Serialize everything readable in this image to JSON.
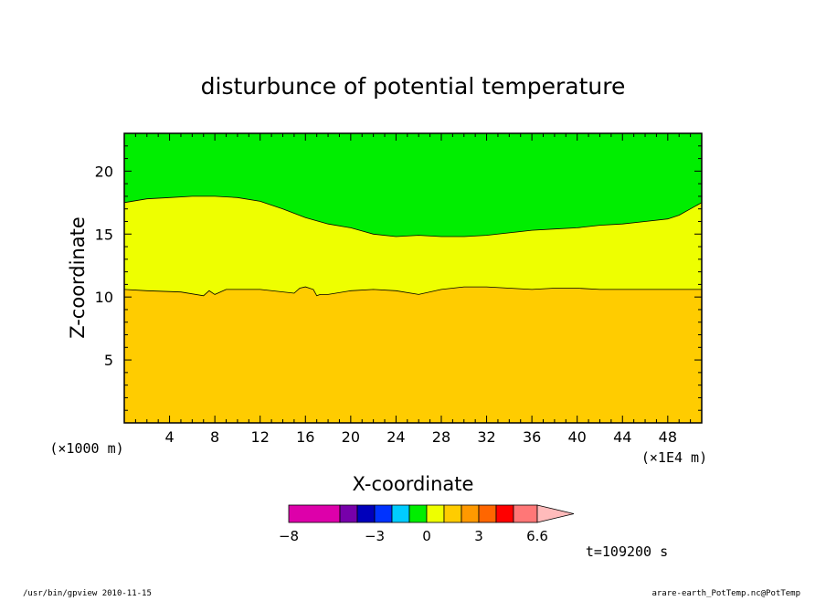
{
  "chart_data": {
    "type": "heatmap",
    "title": "disturbunce of potential temperature",
    "xlabel": "X-coordinate",
    "ylabel": "Z-coordinate",
    "x_unit_left": "(×1000 m)",
    "x_unit_right": "(×1E4 m)",
    "xlim": [
      0,
      51
    ],
    "ylim": [
      0,
      23
    ],
    "x_ticks": [
      "4",
      "8",
      "12",
      "16",
      "20",
      "24",
      "28",
      "32",
      "36",
      "40",
      "44",
      "48"
    ],
    "y_ticks": [
      "5",
      "10",
      "15",
      "20"
    ],
    "regions": [
      {
        "color": "#ffcc00",
        "description": "lower layer"
      },
      {
        "color": "#eeff00",
        "description": "middle layer"
      },
      {
        "color": "#00ee00",
        "description": "upper layer"
      }
    ],
    "contour_lower": {
      "x": [
        0,
        2,
        5,
        7,
        7.5,
        8,
        9,
        12,
        15,
        15.5,
        16,
        16.7,
        17,
        17.3,
        18,
        20,
        22,
        24,
        26,
        28,
        30,
        32,
        34,
        36,
        38,
        40,
        42,
        44,
        46,
        48,
        50,
        51
      ],
      "z": [
        10.6,
        10.5,
        10.4,
        10.1,
        10.5,
        10.2,
        10.6,
        10.6,
        10.3,
        10.7,
        10.8,
        10.6,
        10.1,
        10.2,
        10.2,
        10.5,
        10.6,
        10.5,
        10.2,
        10.6,
        10.8,
        10.8,
        10.7,
        10.6,
        10.7,
        10.7,
        10.6,
        10.6,
        10.6,
        10.6,
        10.6,
        10.6
      ]
    },
    "contour_upper": {
      "x": [
        0,
        2,
        4,
        6,
        8,
        10,
        12,
        14,
        16,
        18,
        20,
        22,
        24,
        26,
        28,
        30,
        32,
        34,
        36,
        38,
        40,
        42,
        44,
        46,
        48,
        49,
        50,
        51
      ],
      "z": [
        17.5,
        17.8,
        17.9,
        18.0,
        18.0,
        17.9,
        17.6,
        17.0,
        16.3,
        15.8,
        15.5,
        15.0,
        14.8,
        14.9,
        14.8,
        14.8,
        14.9,
        15.1,
        15.3,
        15.4,
        15.5,
        15.7,
        15.8,
        16.0,
        16.2,
        16.5,
        17.0,
        17.5
      ]
    },
    "colorbar": {
      "colors": [
        "#dd00aa",
        "#7700aa",
        "#0000bb",
        "#0033ff",
        "#00ccff",
        "#00ee00",
        "#eeff00",
        "#ffcc00",
        "#ff9900",
        "#ff6600",
        "#ff0000",
        "#ff7777",
        "#ffbbbb"
      ],
      "labels": [
        "−8",
        "−3",
        "0",
        "3",
        "6.6"
      ]
    },
    "time_label": "t=109200 s"
  },
  "footer": {
    "left": "/usr/bin/gpview  2010-11-15",
    "right": "arare-earth_PotTemp.nc@PotTemp"
  }
}
